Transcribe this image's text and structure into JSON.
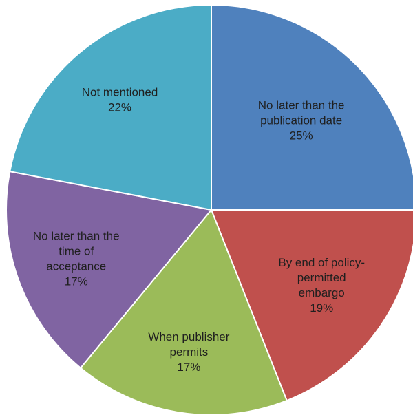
{
  "chart_data": {
    "type": "pie",
    "title": "",
    "start": "top",
    "direction": "clockwise",
    "slices": [
      {
        "label": [
          "No later than the",
          "publication date",
          "25%"
        ],
        "value": 25,
        "color": "#4f81bd"
      },
      {
        "label": [
          "By end of policy-",
          "permitted",
          "embargo",
          "19%"
        ],
        "value": 19,
        "color": "#c0504d"
      },
      {
        "label": [
          "When publisher",
          "permits",
          "17%"
        ],
        "value": 17,
        "color": "#9bbb59"
      },
      {
        "label": [
          "No later than the",
          "time of",
          "acceptance",
          "17%"
        ],
        "value": 17,
        "color": "#8064a2"
      },
      {
        "label": [
          "Not mentioned",
          "22%"
        ],
        "value": 22,
        "color": "#4bacc6"
      }
    ]
  }
}
